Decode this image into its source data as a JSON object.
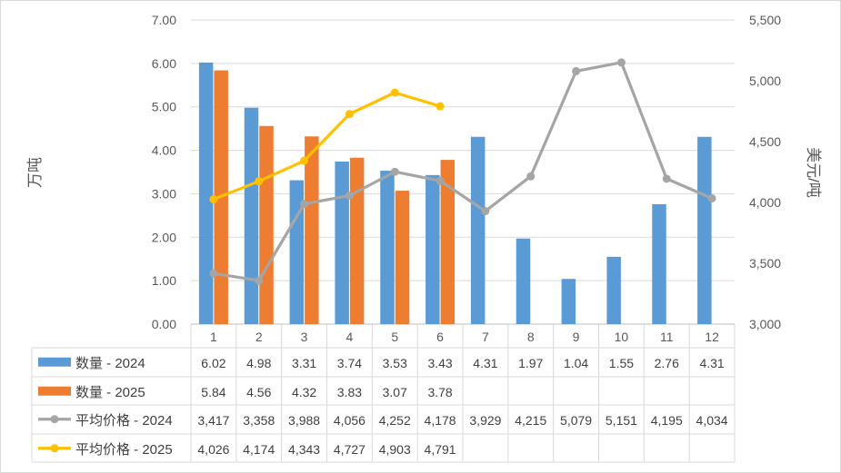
{
  "chart_data": {
    "type": "bar",
    "categories": [
      "1",
      "2",
      "3",
      "4",
      "5",
      "6",
      "7",
      "8",
      "9",
      "10",
      "11",
      "12"
    ],
    "y_left": {
      "label": "万吨",
      "ylim": [
        0,
        7
      ],
      "ticks": [
        "0.00",
        "1.00",
        "2.00",
        "3.00",
        "4.00",
        "5.00",
        "6.00",
        "7.00"
      ]
    },
    "y_right": {
      "label": "美元/吨",
      "ylim": [
        3000,
        5500
      ],
      "ticks": [
        "3,000",
        "3,500",
        "4,000",
        "4,500",
        "5,000",
        "5,500"
      ]
    },
    "grid": true,
    "legend_position": "data table below chart",
    "series": [
      {
        "name": "数量 - 2024",
        "type": "bar",
        "axis": "left",
        "color": "#5B9BD5",
        "values": [
          6.02,
          4.98,
          3.31,
          3.74,
          3.53,
          3.43,
          4.31,
          1.97,
          1.04,
          1.55,
          2.76,
          4.31
        ],
        "labels": [
          "6.02",
          "4.98",
          "3.31",
          "3.74",
          "3.53",
          "3.43",
          "4.31",
          "1.97",
          "1.04",
          "1.55",
          "2.76",
          "4.31"
        ]
      },
      {
        "name": "数量 - 2025",
        "type": "bar",
        "axis": "left",
        "color": "#ED7D31",
        "values": [
          5.84,
          4.56,
          4.32,
          3.83,
          3.07,
          3.78,
          null,
          null,
          null,
          null,
          null,
          null
        ],
        "labels": [
          "5.84",
          "4.56",
          "4.32",
          "3.83",
          "3.07",
          "3.78",
          "",
          "",
          "",
          "",
          "",
          ""
        ]
      },
      {
        "name": "平均价格 - 2024",
        "type": "line",
        "axis": "right",
        "color": "#A5A5A5",
        "values": [
          3417,
          3358,
          3988,
          4056,
          4252,
          4178,
          3929,
          4215,
          5079,
          5151,
          4195,
          4034
        ],
        "labels": [
          "3,417",
          "3,358",
          "3,988",
          "4,056",
          "4,252",
          "4,178",
          "3,929",
          "4,215",
          "5,079",
          "5,151",
          "4,195",
          "4,034"
        ]
      },
      {
        "name": "平均价格 - 2025",
        "type": "line",
        "axis": "right",
        "color": "#FFC000",
        "values": [
          4026,
          4174,
          4343,
          4727,
          4903,
          4791,
          null,
          null,
          null,
          null,
          null,
          null
        ],
        "labels": [
          "4,026",
          "4,174",
          "4,343",
          "4,727",
          "4,903",
          "4,791",
          "",
          "",
          "",
          "",
          "",
          ""
        ]
      }
    ]
  }
}
